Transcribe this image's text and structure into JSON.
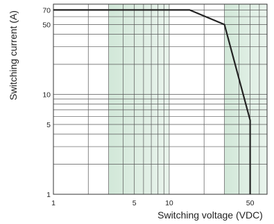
{
  "chart_data": {
    "type": "line",
    "title": "",
    "xlabel": "Switching voltage (VDC)",
    "ylabel": "Switching current (A)",
    "x_scale": "log",
    "y_scale": "log",
    "xlim": [
      1,
      70
    ],
    "ylim": [
      1,
      80
    ],
    "x_tick_labels": [
      "1",
      "5",
      "10",
      "50"
    ],
    "x_tick_values": [
      1,
      5,
      10,
      50
    ],
    "y_tick_labels": [
      "70",
      "50",
      "10",
      "5",
      "1"
    ],
    "y_tick_values": [
      70,
      50,
      10,
      5,
      1
    ],
    "grid": true,
    "shaded_bands": [
      [
        3,
        10
      ],
      [
        30,
        70
      ]
    ],
    "shade_color": "#cfe6d6",
    "line_color": "#222222",
    "series": [
      {
        "x": [
          1,
          15,
          30,
          50,
          50
        ],
        "y": [
          70,
          70,
          50,
          5.5,
          1
        ]
      }
    ]
  }
}
